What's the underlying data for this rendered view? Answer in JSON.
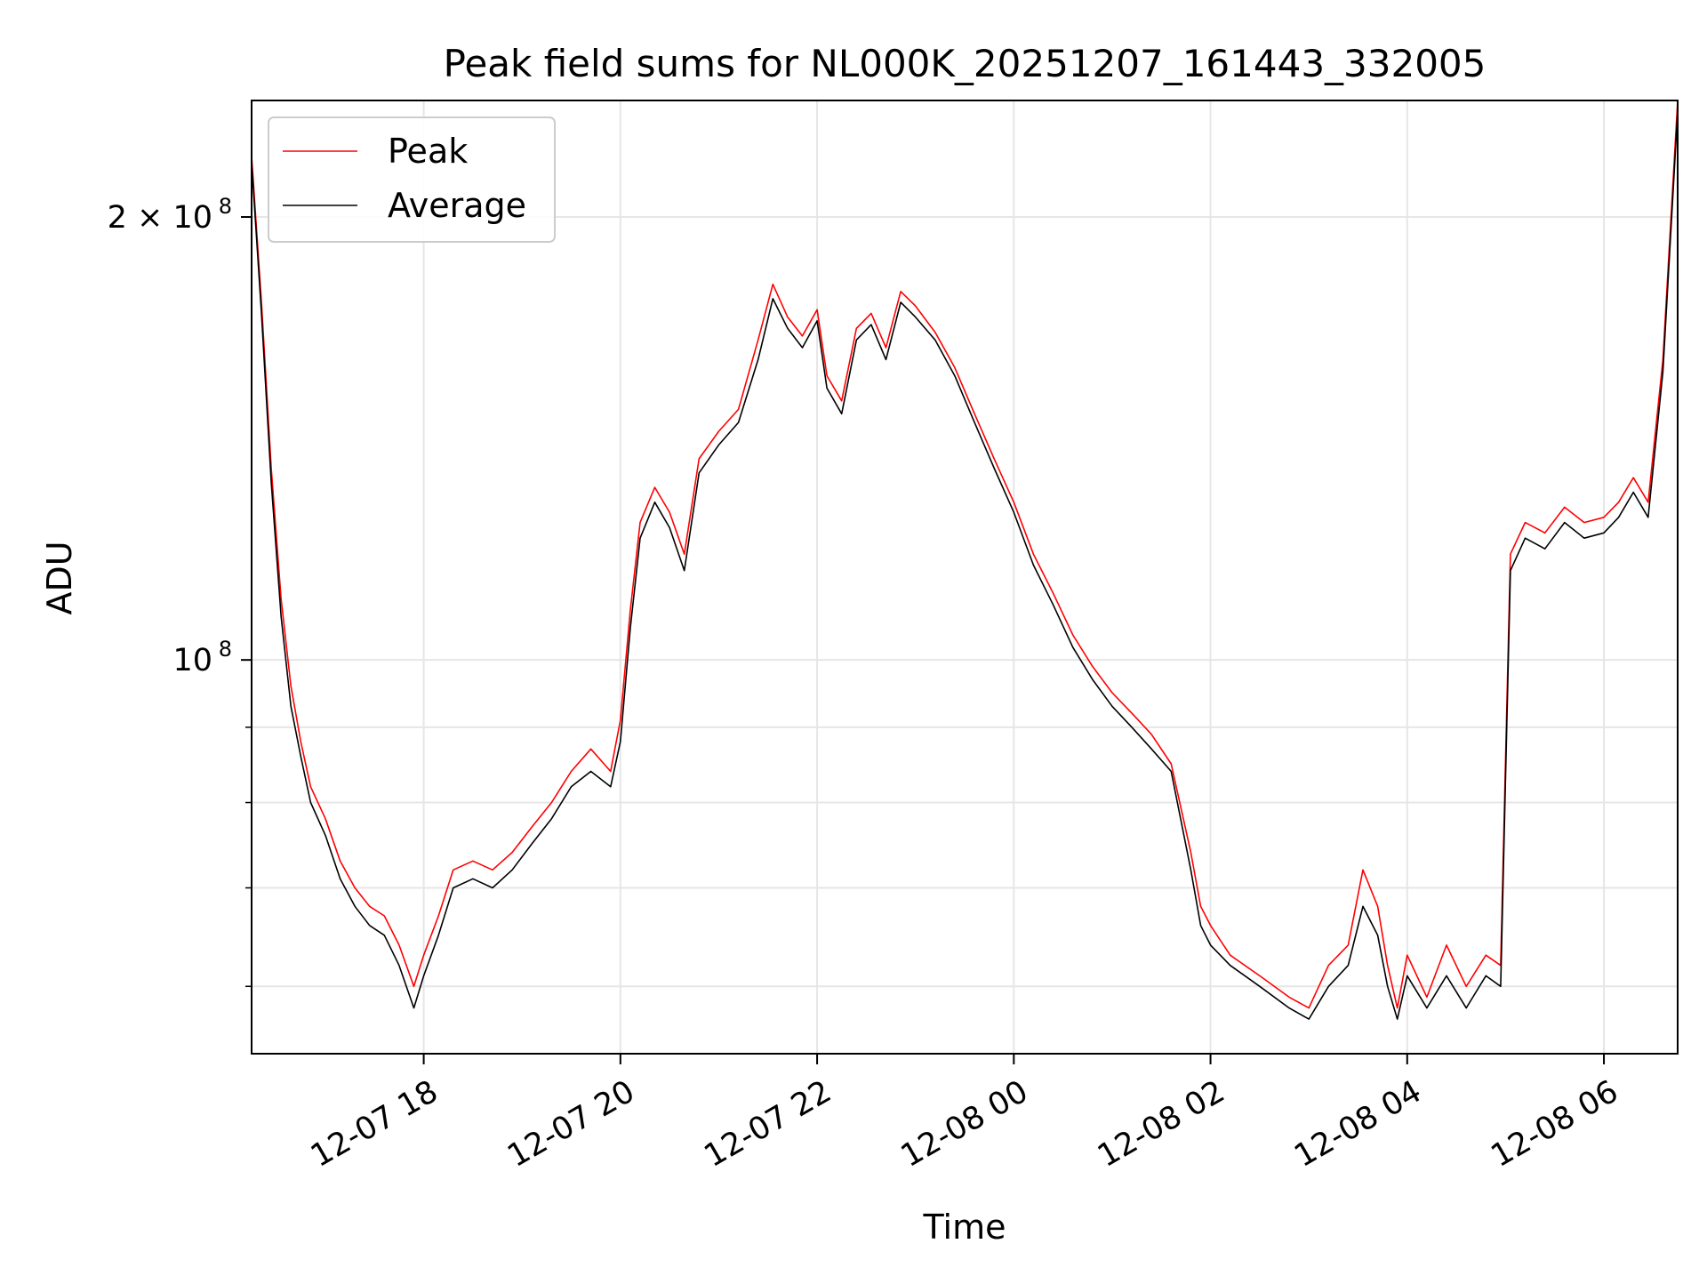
{
  "chart_data": {
    "type": "line",
    "title": "Peak field sums for NL000K_20251207_161443_332005",
    "xlabel": "Time",
    "ylabel": "ADU",
    "yscale": "log",
    "ylim": [
      54000000,
      240000000
    ],
    "xlim_hours": [
      16.25,
      30.75
    ],
    "x_ticks": [
      {
        "hours": 18,
        "label": "12-07 18"
      },
      {
        "hours": 20,
        "label": "12-07 20"
      },
      {
        "hours": 22,
        "label": "12-07 22"
      },
      {
        "hours": 24,
        "label": "12-08 00"
      },
      {
        "hours": 26,
        "label": "12-08 02"
      },
      {
        "hours": 28,
        "label": "12-08 04"
      },
      {
        "hours": 30,
        "label": "12-08 06"
      }
    ],
    "y_major_ticks": [
      {
        "value": 100000000,
        "label": "10",
        "sup": "8"
      },
      {
        "value": 200000000,
        "label": "2 × 10",
        "sup": "8"
      }
    ],
    "y_minor_ticks": [
      60000000,
      70000000,
      80000000,
      90000000
    ],
    "grid": true,
    "legend": {
      "position": "top-left"
    },
    "series": [
      {
        "name": "Peak",
        "color": "#ff0000",
        "x_hours": [
          16.25,
          16.35,
          16.45,
          16.55,
          16.65,
          16.75,
          16.85,
          17.0,
          17.15,
          17.3,
          17.45,
          17.6,
          17.75,
          17.9,
          18.0,
          18.15,
          18.3,
          18.5,
          18.7,
          18.9,
          19.1,
          19.3,
          19.5,
          19.7,
          19.9,
          20.0,
          20.1,
          20.2,
          20.35,
          20.5,
          20.65,
          20.8,
          21.0,
          21.2,
          21.4,
          21.55,
          21.7,
          21.85,
          22.0,
          22.1,
          22.25,
          22.4,
          22.55,
          22.7,
          22.85,
          23.0,
          23.2,
          23.4,
          23.6,
          23.8,
          24.0,
          24.2,
          24.4,
          24.6,
          24.8,
          25.0,
          25.2,
          25.4,
          25.6,
          25.8,
          25.9,
          26.0,
          26.2,
          26.5,
          26.8,
          27.0,
          27.2,
          27.4,
          27.55,
          27.7,
          27.8,
          27.9,
          28.0,
          28.2,
          28.4,
          28.6,
          28.8,
          28.95,
          29.05,
          29.2,
          29.4,
          29.6,
          29.8,
          30.0,
          30.15,
          30.3,
          30.45,
          30.6,
          30.75
        ],
        "values": [
          220000000,
          175000000,
          135000000,
          110000000,
          96000000,
          88000000,
          82000000,
          78000000,
          73000000,
          70000000,
          68000000,
          67000000,
          64000000,
          60000000,
          63000000,
          67000000,
          72000000,
          73000000,
          72000000,
          74000000,
          77000000,
          80000000,
          84000000,
          87000000,
          84000000,
          91000000,
          108000000,
          124000000,
          131000000,
          126000000,
          118000000,
          137000000,
          143000000,
          148000000,
          165000000,
          180000000,
          171000000,
          166000000,
          173000000,
          156000000,
          150000000,
          168000000,
          172000000,
          163000000,
          178000000,
          174000000,
          167000000,
          158000000,
          147000000,
          137000000,
          128000000,
          118000000,
          111000000,
          104000000,
          99000000,
          95000000,
          92000000,
          89000000,
          85000000,
          74000000,
          68000000,
          66000000,
          63000000,
          61000000,
          59000000,
          58000000,
          62000000,
          64000000,
          72000000,
          68000000,
          62000000,
          58000000,
          63000000,
          59000000,
          64000000,
          60000000,
          63000000,
          62000000,
          118000000,
          124000000,
          122000000,
          127000000,
          124000000,
          125000000,
          128000000,
          133000000,
          128000000,
          160000000,
          240000000
        ]
      },
      {
        "name": "Average",
        "color": "#000000",
        "x_hours": [
          16.25,
          16.35,
          16.45,
          16.55,
          16.65,
          16.75,
          16.85,
          17.0,
          17.15,
          17.3,
          17.45,
          17.6,
          17.75,
          17.9,
          18.0,
          18.15,
          18.3,
          18.5,
          18.7,
          18.9,
          19.1,
          19.3,
          19.5,
          19.7,
          19.9,
          20.0,
          20.1,
          20.2,
          20.35,
          20.5,
          20.65,
          20.8,
          21.0,
          21.2,
          21.4,
          21.55,
          21.7,
          21.85,
          22.0,
          22.1,
          22.25,
          22.4,
          22.55,
          22.7,
          22.85,
          23.0,
          23.2,
          23.4,
          23.6,
          23.8,
          24.0,
          24.2,
          24.4,
          24.6,
          24.8,
          25.0,
          25.2,
          25.4,
          25.6,
          25.8,
          25.9,
          26.0,
          26.2,
          26.5,
          26.8,
          27.0,
          27.2,
          27.4,
          27.55,
          27.7,
          27.8,
          27.9,
          28.0,
          28.2,
          28.4,
          28.6,
          28.8,
          28.95,
          29.05,
          29.2,
          29.4,
          29.6,
          29.8,
          30.0,
          30.15,
          30.3,
          30.45,
          30.6,
          30.75
        ],
        "values": [
          218000000,
          172000000,
          132000000,
          107000000,
          93000000,
          86000000,
          80000000,
          76000000,
          71000000,
          68000000,
          66000000,
          65000000,
          62000000,
          58000000,
          61000000,
          65000000,
          70000000,
          71000000,
          70000000,
          72000000,
          75000000,
          78000000,
          82000000,
          84000000,
          82000000,
          88000000,
          105000000,
          121000000,
          128000000,
          123000000,
          115000000,
          134000000,
          140000000,
          145000000,
          160000000,
          176000000,
          168000000,
          163000000,
          170000000,
          153000000,
          147000000,
          165000000,
          169000000,
          160000000,
          175000000,
          171000000,
          165000000,
          156000000,
          145000000,
          135000000,
          126000000,
          116000000,
          109000000,
          102000000,
          97000000,
          93000000,
          90000000,
          87000000,
          84000000,
          72000000,
          66000000,
          64000000,
          62000000,
          60000000,
          58000000,
          57000000,
          60000000,
          62000000,
          68000000,
          65000000,
          60000000,
          57000000,
          61000000,
          58000000,
          61000000,
          58000000,
          61000000,
          60000000,
          115000000,
          121000000,
          119000000,
          124000000,
          121000000,
          122000000,
          125000000,
          130000000,
          125000000,
          157000000,
          236000000
        ]
      }
    ]
  }
}
